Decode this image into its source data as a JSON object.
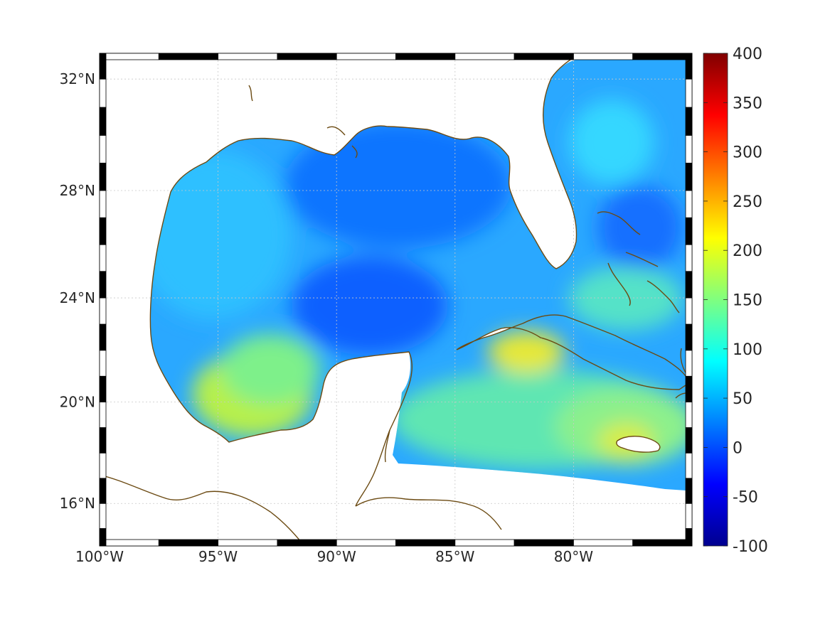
{
  "map": {
    "region": "Gulf of Mexico and Caribbean",
    "projection": "mercator",
    "lon_range": [
      -100,
      -75
    ],
    "lat_range": [
      14.3,
      32.9
    ],
    "lon_ticks": [
      {
        "value": -100,
        "label": "100°W"
      },
      {
        "value": -95,
        "label": "95°W"
      },
      {
        "value": -90,
        "label": "90°W"
      },
      {
        "value": -85,
        "label": "85°W"
      },
      {
        "value": -80,
        "label": "80°W"
      }
    ],
    "lat_ticks": [
      {
        "value": 32,
        "label": "32°N"
      },
      {
        "value": 28,
        "label": "28°N"
      },
      {
        "value": 24,
        "label": "24°N"
      },
      {
        "value": 20,
        "label": "20°N"
      },
      {
        "value": 16,
        "label": "16°N"
      }
    ],
    "grid": true,
    "coastline_color": "#6b4a12",
    "frame_style": "alternating black and white border"
  },
  "colorbar": {
    "colormap": "jet",
    "range": [
      -100,
      400
    ],
    "ticks": [
      "400",
      "350",
      "300",
      "250",
      "200",
      "150",
      "100",
      "50",
      "0",
      "-50",
      "-100"
    ],
    "placement": "right"
  },
  "field_summary": {
    "gulf_of_mexico_typical": 55,
    "northeast_gulf_min": 25,
    "bay_of_campeche": 180,
    "caribbean_typical": 130,
    "central_cuba_max": 220,
    "jamaica_max": 190
  },
  "chart_data": {
    "type": "heatmap",
    "title": "",
    "xlabel": "",
    "ylabel": "",
    "colorbar_range": [
      -100,
      400
    ]
  }
}
